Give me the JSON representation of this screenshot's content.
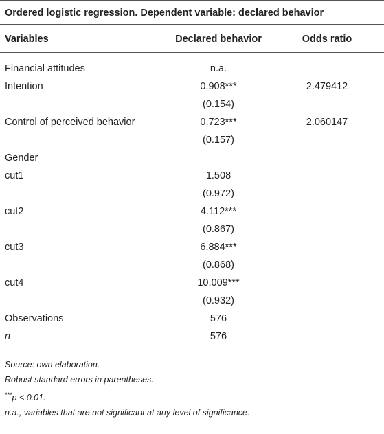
{
  "title": "Ordered logistic regression. Dependent variable: declared behavior",
  "table": {
    "headers": [
      "Variables",
      "Declared behavior",
      "Odds ratio"
    ],
    "rows": [
      {
        "variable": "Financial attitudes",
        "declared": "n.a."
      },
      {
        "variable": "Intention",
        "declared": "0.908***",
        "odds": "2.479412"
      },
      {
        "declared": "(0.154)"
      },
      {
        "variable": "Control of perceived behavior",
        "declared": "0.723***",
        "odds": "2.060147"
      },
      {
        "declared": "(0.157)"
      },
      {
        "variable": "Gender"
      },
      {
        "variable": "cut1",
        "declared": "1.508"
      },
      {
        "declared": "(0.972)"
      },
      {
        "variable": "cut2",
        "declared": "4.112***"
      },
      {
        "declared": "(0.867)"
      },
      {
        "variable": "cut3",
        "declared": "6.884***"
      },
      {
        "declared": "(0.868)"
      },
      {
        "variable": "cut4",
        "declared": "10.009***"
      },
      {
        "declared": "(0.932)"
      },
      {
        "variable": "Observations",
        "declared": "576"
      },
      {
        "variable": "n",
        "italic": true,
        "declared": "576"
      }
    ]
  },
  "footnotes": [
    {
      "text": "Source: own elaboration."
    },
    {
      "text": "Robust standard errors in parentheses."
    },
    {
      "sup": "***",
      "text": "p < 0.01."
    },
    {
      "text": "n.a., variables that are not significant at any level of significance."
    }
  ]
}
